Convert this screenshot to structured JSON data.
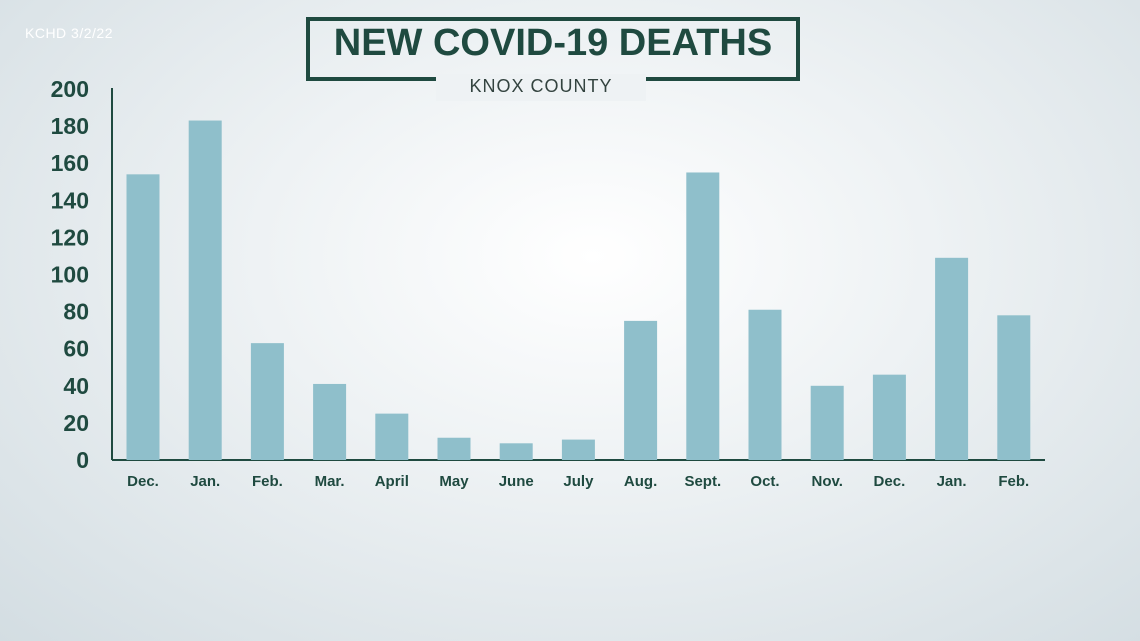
{
  "source_label": "KCHD 3/2/22",
  "chart_data": {
    "type": "bar",
    "title": "NEW COVID-19 DEATHS",
    "subtitle": "KNOX COUNTY",
    "categories": [
      "Dec.",
      "Jan.",
      "Feb.",
      "Mar.",
      "April",
      "May",
      "June",
      "July",
      "Aug.",
      "Sept.",
      "Oct.",
      "Nov.",
      "Dec.",
      "Jan.",
      "Feb."
    ],
    "values": [
      154,
      183,
      63,
      41,
      25,
      12,
      9,
      11,
      75,
      155,
      81,
      40,
      46,
      109,
      78
    ],
    "yticks": [
      0,
      20,
      40,
      60,
      80,
      100,
      120,
      140,
      160,
      180,
      200
    ],
    "ylim": [
      0,
      200
    ],
    "xlabel": "",
    "ylabel": "",
    "grid": false,
    "colors": {
      "bar": "#8fbfcb",
      "axis": "#1f4a40",
      "text": "#1f4a40"
    }
  }
}
